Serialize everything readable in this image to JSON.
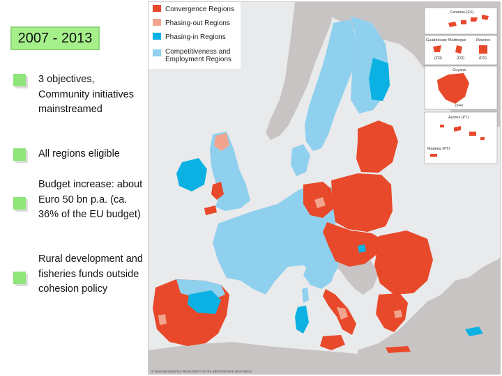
{
  "title": "2007 - 2013",
  "bullets": [
    {
      "text": "3 objectives, Community initiatives mainstreamed"
    },
    {
      "text": "All regions eligible"
    },
    {
      "text": "Budget increase: about Euro 50 bn p.a. (ca. 36% of the EU budget)"
    },
    {
      "text": "Rural development and fisheries funds outside cohesion policy"
    }
  ],
  "legend": [
    {
      "label": "Convergence Regions",
      "color": "#e8492a"
    },
    {
      "label": "Phasing-out Regions",
      "color": "#f2a48e"
    },
    {
      "label": "Phasing-in Regions",
      "color": "#0ab1e2"
    },
    {
      "label": "Competitiveness and Employment Regions",
      "color": "#8fd0ee"
    }
  ],
  "colors": {
    "non_eu": "#c9c4c4",
    "sea": "#e8eaec",
    "bullet": "#8fe57a",
    "title_box": "#a6f08c"
  },
  "insets": {
    "canarias": "Canarias (ES)",
    "guadeloupe": "Guadeloupe",
    "martinique": "Martinique",
    "reunion": "Réunion",
    "guyane": "Guyane",
    "fr_label": "(FR)",
    "acores": "Açores (PT)",
    "madeira": "Madeira (PT)"
  },
  "copyright": "© EuroGeographics Association for the administrative boundaries"
}
